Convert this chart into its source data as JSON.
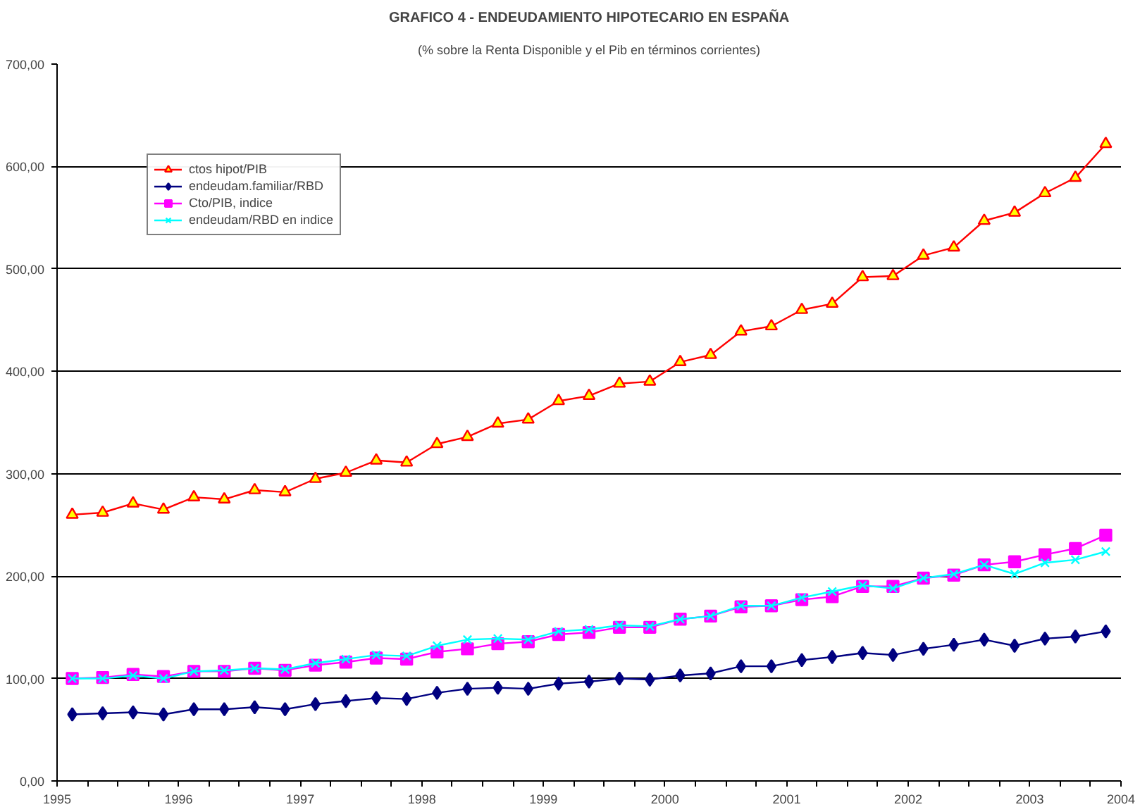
{
  "chart_data": {
    "type": "line",
    "title": "GRAFICO 4 - ENDEUDAMIENTO HIPOTECARIO EN ESPAÑA",
    "subtitle": "(% sobre la Renta Disponible y el Pib en términos corrientes)",
    "x": [
      1995.125,
      1995.375,
      1995.625,
      1995.875,
      1996.125,
      1996.375,
      1996.625,
      1996.875,
      1997.125,
      1997.375,
      1997.625,
      1997.875,
      1998.125,
      1998.375,
      1998.625,
      1998.875,
      1999.125,
      1999.375,
      1999.625,
      1999.875,
      2000.125,
      2000.375,
      2000.625,
      2000.875,
      2001.125,
      2001.375,
      2001.625,
      2001.875,
      2002.125,
      2002.375,
      2002.625,
      2002.875,
      2003.125,
      2003.375,
      2003.625
    ],
    "xlim": [
      1995,
      2003.75
    ],
    "xticks": [
      1995,
      {
        "value": 1995.25,
        "label": null
      },
      {
        "value": 1995.5,
        "label": null
      },
      {
        "value": 1995.75,
        "label": null
      },
      1996,
      {
        "value": 1996.25,
        "label": null
      },
      {
        "value": 1996.5,
        "label": null
      },
      {
        "value": 1996.75,
        "label": null
      },
      1997,
      {
        "value": 1997.25,
        "label": null
      },
      {
        "value": 1997.5,
        "label": null
      },
      {
        "value": 1997.75,
        "label": null
      },
      1998,
      {
        "value": 1998.25,
        "label": null
      },
      {
        "value": 1998.5,
        "label": null
      },
      {
        "value": 1998.75,
        "label": null
      },
      1999,
      {
        "value": 1999.25,
        "label": null
      },
      {
        "value": 1999.5,
        "label": null
      },
      {
        "value": 1999.75,
        "label": null
      },
      2000,
      {
        "value": 2000.25,
        "label": null
      },
      {
        "value": 2000.5,
        "label": null
      },
      {
        "value": 2000.75,
        "label": null
      },
      2001,
      {
        "value": 2001.25,
        "label": null
      },
      {
        "value": 2001.5,
        "label": null
      },
      {
        "value": 2001.75,
        "label": null
      },
      2002,
      {
        "value": 2002.25,
        "label": null
      },
      {
        "value": 2002.5,
        "label": null
      },
      {
        "value": 2002.75,
        "label": null
      },
      2003,
      {
        "value": 2003.25,
        "label": null
      },
      {
        "value": 2003.5,
        "label": null
      },
      {
        "value": 2003.75,
        "label": "2004"
      }
    ],
    "ylim": [
      0,
      700
    ],
    "yticks": [
      {
        "value": 0,
        "label": "0,00"
      },
      {
        "value": 100,
        "label": "100,00"
      },
      {
        "value": 200,
        "label": "200,00"
      },
      {
        "value": 300,
        "label": "300,00"
      },
      {
        "value": 400,
        "label": "400,00"
      },
      {
        "value": 500,
        "label": "500,00"
      },
      {
        "value": 600,
        "label": "600,00"
      },
      {
        "value": 700,
        "label": "700,00"
      }
    ],
    "grid": "y",
    "legend": "top left",
    "series": [
      {
        "name": "ctos hipot/PIB",
        "color": "#ff0000",
        "marker": "triangle",
        "values": [
          260,
          262,
          271,
          265,
          277,
          275,
          284,
          282,
          295,
          301,
          313,
          311,
          329,
          336,
          349,
          353,
          371,
          376,
          388,
          390,
          409,
          416,
          439,
          444,
          460,
          466,
          492,
          493,
          513,
          521,
          547,
          555,
          574,
          589,
          622
        ]
      },
      {
        "name": "endeudam.familiar/RBD",
        "color": "#000080",
        "marker": "diamond",
        "values": [
          65,
          66,
          67,
          65,
          70,
          70,
          72,
          70,
          75,
          78,
          81,
          80,
          86,
          90,
          91,
          90,
          95,
          97,
          100,
          99,
          103,
          105,
          112,
          112,
          118,
          121,
          125,
          123,
          129,
          133,
          138,
          132,
          139,
          141,
          146
        ]
      },
      {
        "name": "Cto/PIB, indice",
        "color": "#ff00ff",
        "marker": "square",
        "values": [
          100,
          101,
          104,
          102,
          107,
          107,
          110,
          108,
          113,
          116,
          120,
          119,
          126,
          129,
          134,
          136,
          143,
          145,
          150,
          150,
          158,
          161,
          170,
          171,
          177,
          180,
          190,
          190,
          198,
          201,
          211,
          214,
          221,
          227,
          240
        ]
      },
      {
        "name": "endeudam/RBD en indice",
        "color": "#00ffff",
        "marker": "cross",
        "values": [
          100,
          100,
          103,
          100,
          107,
          108,
          110,
          109,
          115,
          119,
          123,
          122,
          132,
          138,
          139,
          138,
          146,
          148,
          152,
          151,
          158,
          161,
          171,
          171,
          179,
          185,
          191,
          188,
          198,
          202,
          211,
          202,
          213,
          216,
          224
        ]
      }
    ]
  }
}
